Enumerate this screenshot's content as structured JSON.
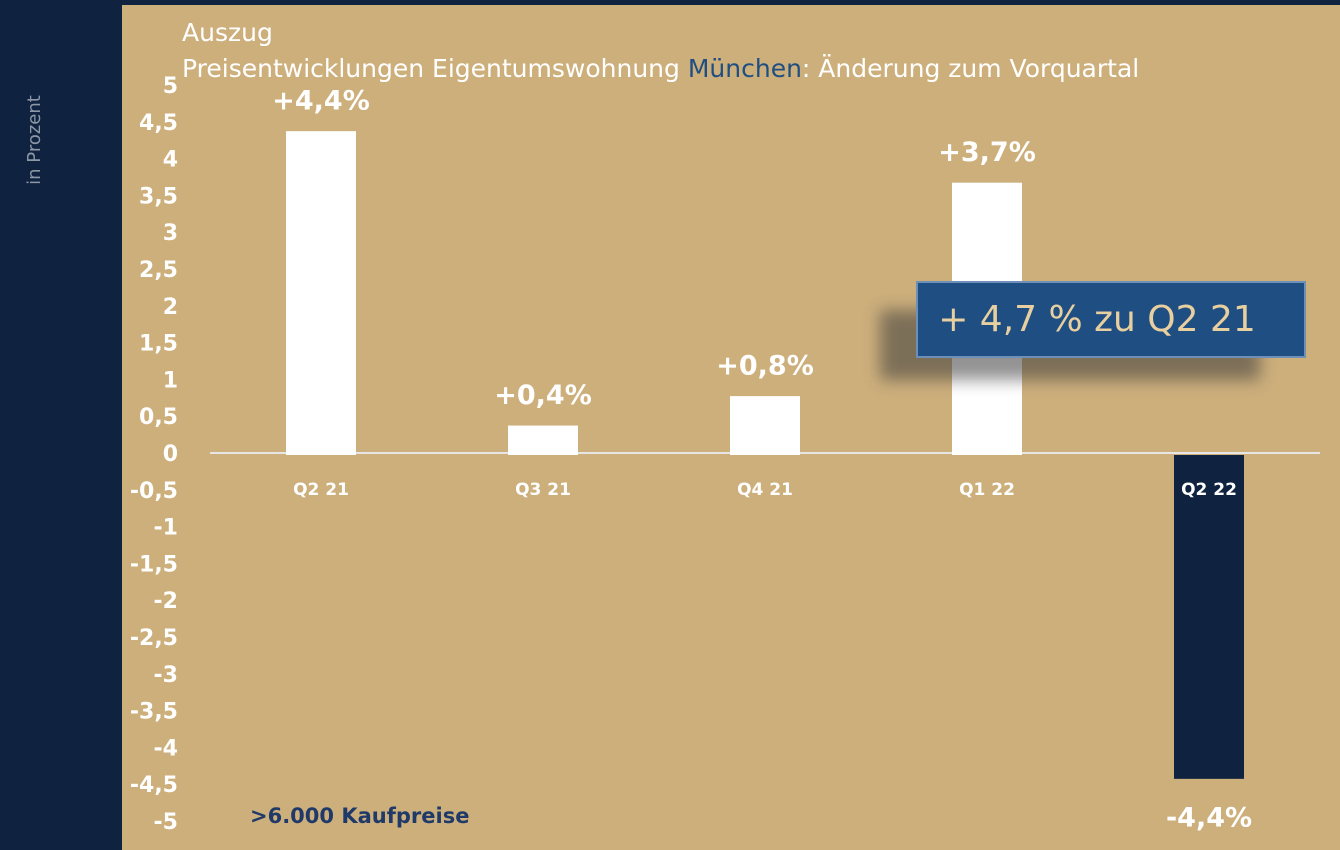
{
  "chart_data": {
    "type": "bar",
    "title": "Auszug",
    "subtitle_parts": [
      "Preisentwicklungen Eigentumswohnung ",
      "München",
      ": Änderung zum Vorquartal"
    ],
    "y_axis_label": "in Prozent",
    "categories": [
      "Q2 21",
      "Q3 21",
      "Q4 21",
      "Q1 22",
      "Q2 22"
    ],
    "values": [
      4.4,
      0.4,
      0.8,
      3.7,
      -4.4
    ],
    "value_labels": [
      "+4,4%",
      "+0,4%",
      "+0,8%",
      "+3,7%",
      "-4,4%"
    ],
    "colors": [
      "#ffffff",
      "#ffffff",
      "#ffffff",
      "#ffffff",
      "#0f2340"
    ],
    "ylim": [
      -5,
      5
    ],
    "yticks": [
      -5,
      {
        "value": -4.5,
        "label": "-4,5"
      },
      -4,
      {
        "value": -3.5,
        "label": "-3,5"
      },
      -3,
      {
        "value": -2.5,
        "label": "-2,5"
      },
      -2,
      {
        "value": -1.5,
        "label": "-1,5"
      },
      -1,
      {
        "value": -0.5,
        "label": "-0,5"
      },
      0,
      {
        "value": 0.5,
        "label": "0,5"
      },
      1,
      {
        "value": 1.5,
        "label": "1,5"
      },
      2,
      {
        "value": 2.5,
        "label": "2,5"
      },
      3,
      {
        "value": 3.5,
        "label": "3,5"
      },
      4,
      {
        "value": 4.5,
        "label": "4,5"
      },
      5
    ],
    "annotation": "+ 4,7 % zu Q2 21",
    "footnote": ">6.000 Kaufpreise"
  }
}
